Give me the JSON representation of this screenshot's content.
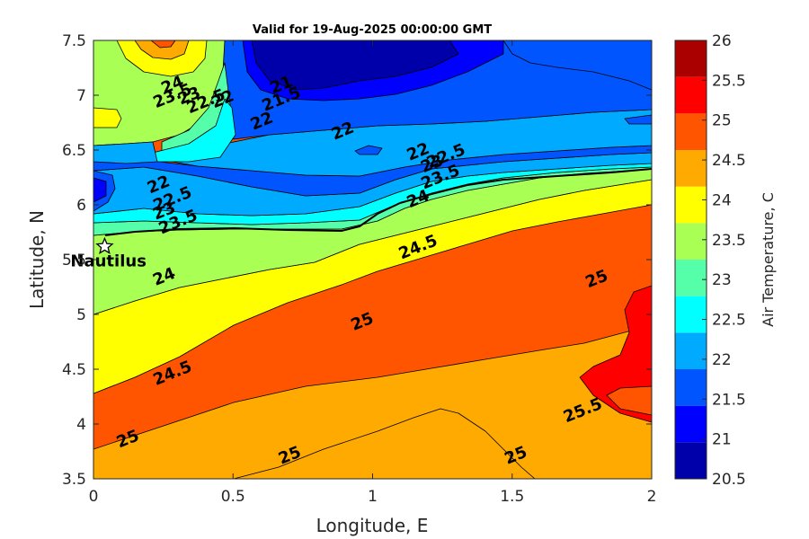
{
  "chart_data": {
    "type": "heatmap",
    "title": "Valid for 19-Aug-2025 00:00:00 GMT",
    "xlabel": "Longitude, E",
    "ylabel": "Latitude, N",
    "xlim": [
      0,
      2
    ],
    "ylim": [
      3.5,
      7.5
    ],
    "x_ticks": [
      "0",
      "0.5",
      "1",
      "1.5",
      "2"
    ],
    "y_ticks": [
      "3.5",
      "4",
      "4.5",
      "5",
      "5.5",
      "6",
      "6.5",
      "7",
      "7.5"
    ],
    "colorbar": {
      "label": "Air Temperature, C",
      "ticks": [
        "20.5",
        "21",
        "21.5",
        "22",
        "22.5",
        "23",
        "23.5",
        "24",
        "24.5",
        "25",
        "25.5",
        "26"
      ],
      "levels": [
        {
          "from": 20.5,
          "to": 21.0,
          "color": "#0000aa"
        },
        {
          "from": 21.0,
          "to": 21.5,
          "color": "#0000ff"
        },
        {
          "from": 21.5,
          "to": 22.0,
          "color": "#0055ff"
        },
        {
          "from": 22.0,
          "to": 22.5,
          "color": "#00aaff"
        },
        {
          "from": 22.5,
          "to": 23.0,
          "color": "#00ffff"
        },
        {
          "from": 23.0,
          "to": 23.5,
          "color": "#55ffaa"
        },
        {
          "from": 23.5,
          "to": 24.0,
          "color": "#aaff55"
        },
        {
          "from": 24.0,
          "to": 24.5,
          "color": "#ffff00"
        },
        {
          "from": 24.5,
          "to": 25.0,
          "color": "#ffaa00"
        },
        {
          "from": 25.0,
          "to": 25.5,
          "color": "#ff5500"
        },
        {
          "from": 25.5,
          "to": 26.0,
          "color": "#ff0000"
        },
        {
          "from": 26.0,
          "to": 26.5,
          "color": "#aa0000"
        }
      ]
    },
    "contour_labels": [
      {
        "text": "25",
        "lon": 0.13,
        "lat": 3.82
      },
      {
        "text": "25",
        "lon": 0.71,
        "lat": 3.67
      },
      {
        "text": "25",
        "lon": 1.52,
        "lat": 3.67
      },
      {
        "text": "25",
        "lon": 0.97,
        "lat": 4.89
      },
      {
        "text": "25",
        "lon": 1.81,
        "lat": 5.28
      },
      {
        "text": "25.5",
        "lon": 1.76,
        "lat": 4.08
      },
      {
        "text": "24.5",
        "lon": 0.29,
        "lat": 4.42
      },
      {
        "text": "24.5",
        "lon": 1.17,
        "lat": 5.57
      },
      {
        "text": "24",
        "lon": 0.26,
        "lat": 5.3
      },
      {
        "text": "24",
        "lon": 1.17,
        "lat": 6.01
      },
      {
        "text": "23.5",
        "lon": 0.31,
        "lat": 5.8
      },
      {
        "text": "23.5",
        "lon": 1.25,
        "lat": 6.21
      },
      {
        "text": "23",
        "lon": 0.26,
        "lat": 5.9
      },
      {
        "text": "23",
        "lon": 1.22,
        "lat": 6.33
      },
      {
        "text": "22.5",
        "lon": 0.29,
        "lat": 6.01
      },
      {
        "text": "22.5",
        "lon": 1.27,
        "lat": 6.4
      },
      {
        "text": "22",
        "lon": 0.24,
        "lat": 6.14
      },
      {
        "text": "22",
        "lon": 1.17,
        "lat": 6.44
      },
      {
        "text": "22",
        "lon": 0.9,
        "lat": 6.63
      },
      {
        "text": "22",
        "lon": 0.61,
        "lat": 6.72
      },
      {
        "text": "22",
        "lon": 0.47,
        "lat": 6.92
      },
      {
        "text": "21.5",
        "lon": 0.68,
        "lat": 6.92
      },
      {
        "text": "21",
        "lon": 0.68,
        "lat": 7.05
      },
      {
        "text": "22.5",
        "lon": 0.41,
        "lat": 6.9
      },
      {
        "text": "23",
        "lon": 0.35,
        "lat": 6.95
      },
      {
        "text": "23.5",
        "lon": 0.29,
        "lat": 6.95
      },
      {
        "text": "24",
        "lon": 0.29,
        "lat": 7.05
      }
    ],
    "markers": [
      {
        "label": "Nautilus",
        "symbol": "star",
        "lon": 0.04,
        "lat": 5.62
      }
    ]
  }
}
